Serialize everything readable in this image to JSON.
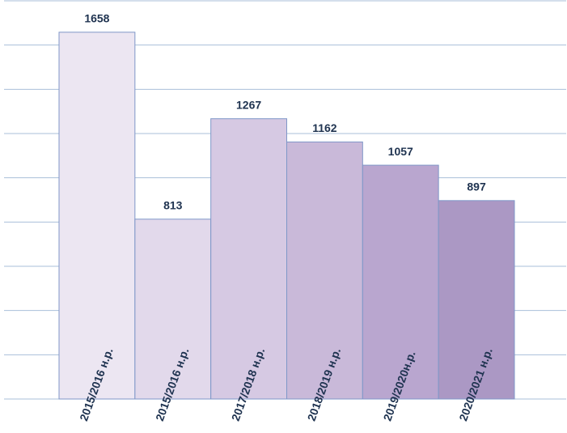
{
  "chart_data": {
    "type": "bar",
    "categories": [
      "2015/2016 н.р.",
      "2015/2016 н.р.",
      "2017/2018 н.р.",
      "2018/2019 н.р.",
      "2019/2020н.р.",
      "2020/2021 н.р."
    ],
    "values": [
      1658,
      813,
      1267,
      1162,
      1057,
      897
    ],
    "colors": [
      "#ece6f2",
      "#e2d9eb",
      "#d6c9e3",
      "#c9b9d9",
      "#b9a6cf",
      "#ab98c4"
    ],
    "ylim": [
      0,
      1800
    ],
    "yticks": [
      0,
      200,
      400,
      600,
      800,
      1000,
      1200,
      1400,
      1600,
      1800
    ],
    "grid": true
  }
}
